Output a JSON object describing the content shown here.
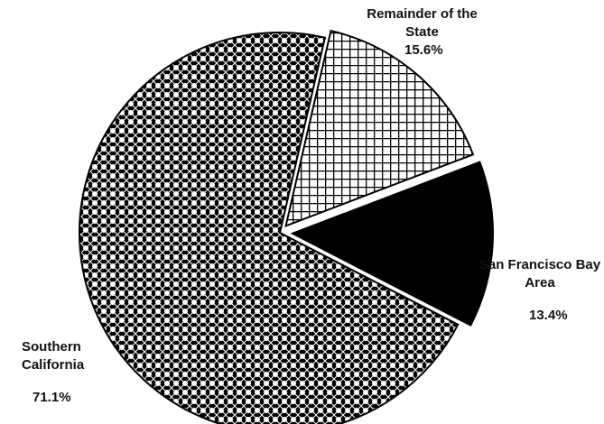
{
  "chart_data": {
    "type": "pie",
    "categories": [
      "Remainder of the State",
      "San Francisco Bay Area",
      "Southern California"
    ],
    "values": [
      15.6,
      13.4,
      71.1
    ],
    "value_labels": [
      "15.6%",
      "13.4%",
      "71.1%"
    ],
    "patterns": [
      "grid",
      "solid",
      "dots"
    ],
    "color": "#000000"
  }
}
